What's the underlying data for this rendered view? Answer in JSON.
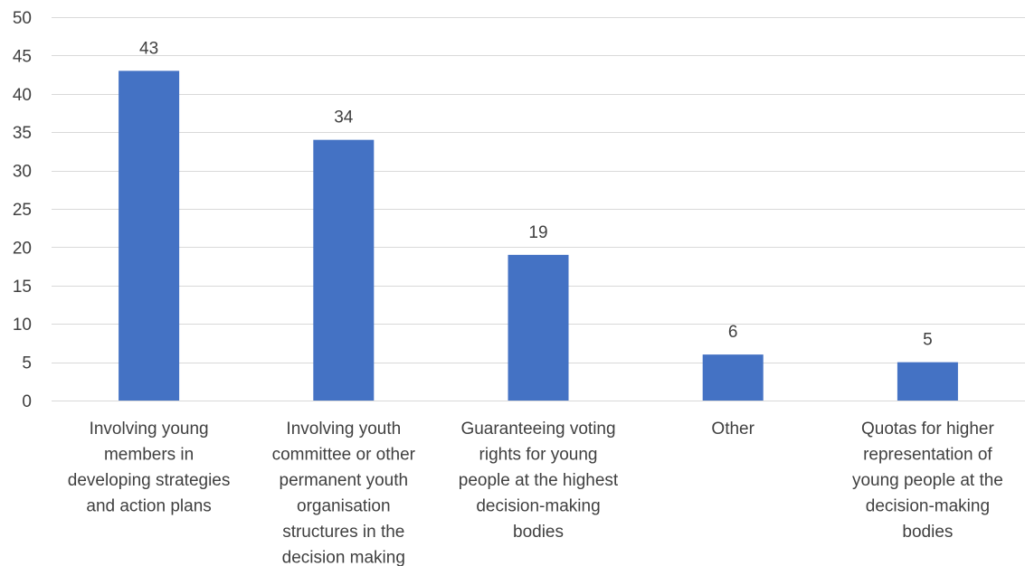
{
  "chart_data": {
    "type": "bar",
    "title": "",
    "xlabel": "",
    "ylabel": "",
    "ylim": [
      0,
      50
    ],
    "yticks": [
      0,
      5,
      10,
      15,
      20,
      25,
      30,
      35,
      40,
      45,
      50
    ],
    "grid": true,
    "legend": "none",
    "bar_color": "#4472c4",
    "categories": [
      [
        "Involving young",
        "members in",
        "developing strategies",
        "and action plans"
      ],
      [
        "Involving youth",
        "committee or other",
        "permanent youth",
        "organisation",
        "structures in the",
        "decision making"
      ],
      [
        "Guaranteeing voting",
        "rights for young",
        "people at the highest",
        "decision-making",
        "bodies"
      ],
      [
        "Other"
      ],
      [
        "Quotas for higher",
        "representation of",
        "young people at the",
        "decision-making",
        "bodies"
      ]
    ],
    "values": [
      43,
      34,
      19,
      6,
      5
    ]
  }
}
